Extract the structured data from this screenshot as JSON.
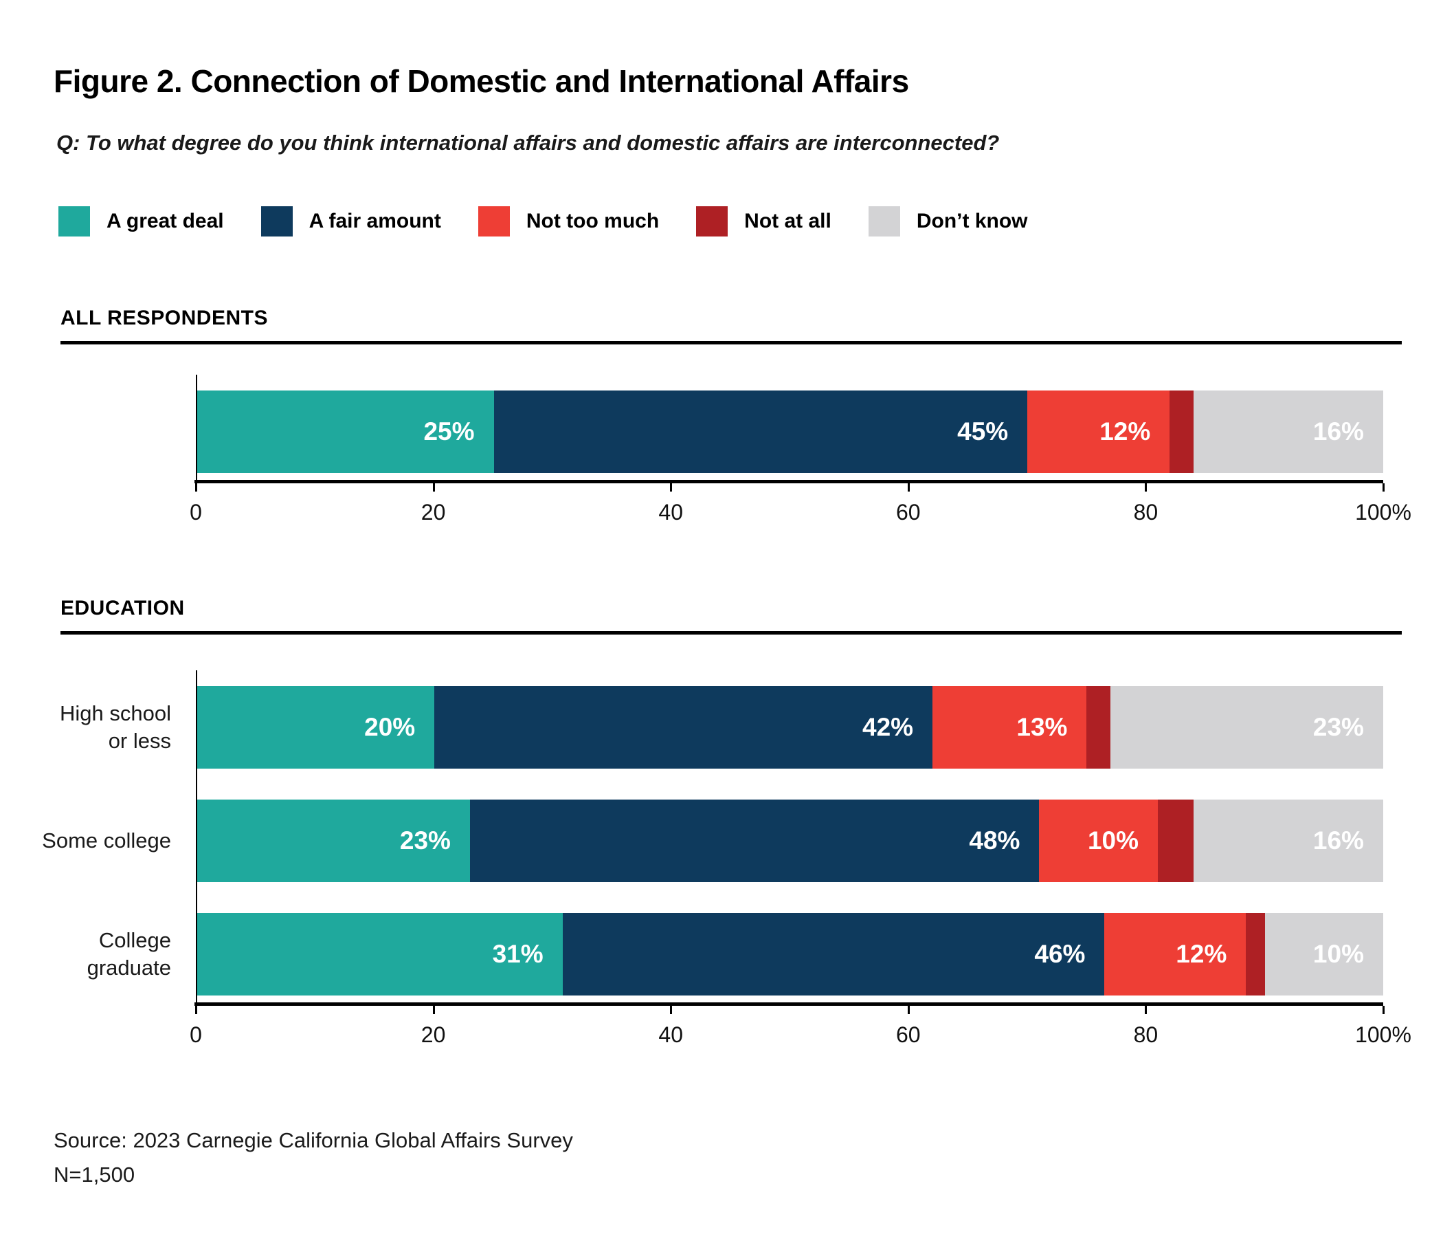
{
  "page": {
    "title": "Figure 2. Connection of Domestic and International Affairs",
    "question": "Q: To what degree do you think international affairs and domestic affairs are interconnected?",
    "source_line1": "Source: 2023 Carnegie California Global Affairs Survey",
    "source_line2": "N=1,500"
  },
  "legend": {
    "items": [
      {
        "label": "A great deal",
        "color": "#1FA99D"
      },
      {
        "label": "A fair amount",
        "color": "#0E3A5D"
      },
      {
        "label": "Not too much",
        "color": "#EE3E35"
      },
      {
        "label": "Not at all",
        "color": "#AE2024"
      },
      {
        "label": "Don’t know",
        "color": "#D3D3D5"
      }
    ]
  },
  "chart_data": [
    {
      "type": "bar",
      "variant": "horizontal-stacked",
      "section_header": "ALL RESPONDENTS",
      "categories": [
        "All respondents"
      ],
      "category_label_lines": [
        []
      ],
      "series": [
        {
          "name": "A great deal",
          "values": [
            25
          ]
        },
        {
          "name": "A fair amount",
          "values": [
            45
          ]
        },
        {
          "name": "Not too much",
          "values": [
            12
          ]
        },
        {
          "name": "Not at all",
          "values": [
            2
          ]
        },
        {
          "name": "Don’t know",
          "values": [
            16
          ]
        }
      ],
      "value_labels": [
        [
          "25%",
          "45%",
          "12%",
          null,
          "16%"
        ]
      ],
      "xlim": [
        0,
        100
      ],
      "x_tick_values": [
        0,
        20,
        40,
        60,
        80,
        100
      ],
      "x_tick_labels": [
        "0",
        "20",
        "40",
        "60",
        "80",
        "100%"
      ],
      "grid": false,
      "legend_position": "top"
    },
    {
      "type": "bar",
      "variant": "horizontal-stacked",
      "section_header": "EDUCATION",
      "categories": [
        "High school or less",
        "Some college",
        "College graduate"
      ],
      "category_label_lines": [
        [
          "High school",
          "or less"
        ],
        [
          "Some college"
        ],
        [
          "College",
          "graduate"
        ]
      ],
      "series": [
        {
          "name": "A great deal",
          "values": [
            20,
            23,
            31
          ]
        },
        {
          "name": "A fair amount",
          "values": [
            42,
            48,
            46
          ]
        },
        {
          "name": "Not too much",
          "values": [
            13,
            10,
            12
          ]
        },
        {
          "name": "Not at all",
          "values": [
            2,
            3,
            1
          ]
        },
        {
          "name": "Don’t know",
          "values": [
            23,
            16,
            10
          ]
        }
      ],
      "value_labels": [
        [
          "20%",
          "42%",
          "13%",
          null,
          "23%"
        ],
        [
          "23%",
          "48%",
          "10%",
          null,
          "16%"
        ],
        [
          "31%",
          "46%",
          "12%",
          null,
          "10%"
        ]
      ],
      "xlim": [
        0,
        100
      ],
      "x_tick_values": [
        0,
        20,
        40,
        60,
        80,
        100
      ],
      "x_tick_labels": [
        "0",
        "20",
        "40",
        "60",
        "80",
        "100%"
      ],
      "grid": false,
      "legend_position": "top"
    }
  ]
}
